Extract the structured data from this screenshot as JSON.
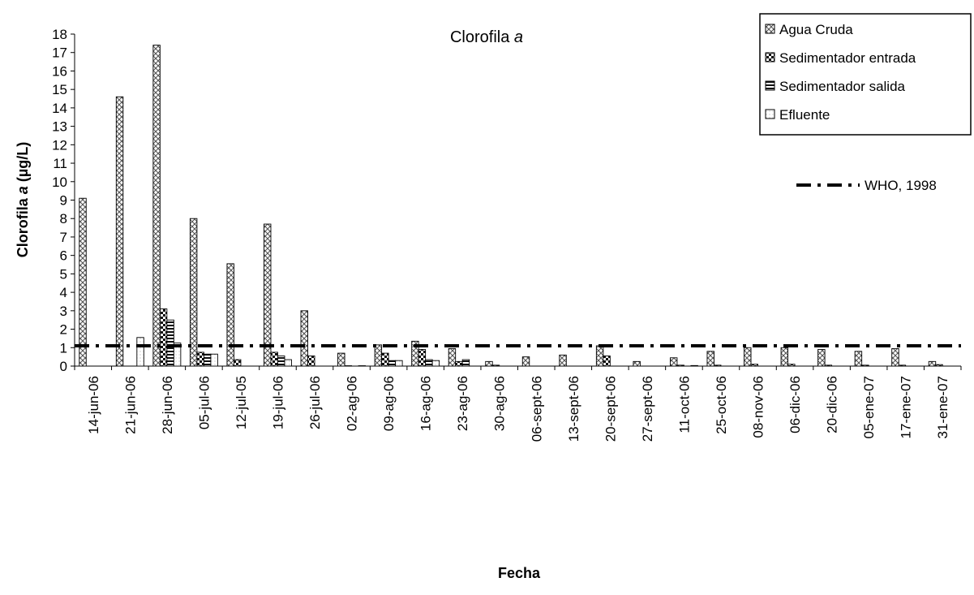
{
  "chart_data": {
    "type": "bar",
    "title": "Clorofila",
    "title_italic": "a",
    "xlabel": "Fecha",
    "ylabel": "Clorofila",
    "ylabel_italic": "a",
    "ylabel_unit": "(µg/L)",
    "ylim": [
      0,
      18
    ],
    "yticks": [
      0,
      1,
      2,
      3,
      4,
      5,
      6,
      7,
      8,
      9,
      10,
      11,
      12,
      13,
      14,
      15,
      16,
      17,
      18
    ],
    "grid": false,
    "legend_position": "top-right",
    "categories": [
      "14-jun-06",
      "21-jun-06",
      "28-jun-06",
      "05-jul-06",
      "12-jul-05",
      "19-jul-06",
      "26-jul-06",
      "02-ag-06",
      "09-ag-06",
      "16-ag-06",
      "23-ag-06",
      "30-ag-06",
      "06-sept-06",
      "13-sept-06",
      "20-sept-06",
      "27-sept-06",
      "11-oct-06",
      "25-oct-06",
      "08-nov-06",
      "06-dic-06",
      "20-dic-06",
      "05-ene-07",
      "17-ene-07",
      "31-ene-07"
    ],
    "series": [
      {
        "name": "Agua Cruda",
        "pattern": "cross",
        "values": [
          9.1,
          14.6,
          17.4,
          8.0,
          5.55,
          7.7,
          3.0,
          0.7,
          1.15,
          1.35,
          0.95,
          0.25,
          0.5,
          0.6,
          1.1,
          0.25,
          0.45,
          0.8,
          1.0,
          1.0,
          0.9,
          0.8,
          0.95,
          0.25
        ]
      },
      {
        "name": "Sedimentador entrada",
        "pattern": "check",
        "values": [
          0,
          0,
          3.1,
          0.75,
          0.35,
          0.75,
          0.55,
          0.02,
          0.7,
          0.9,
          0.25,
          0.05,
          0,
          0,
          0.55,
          0,
          0.05,
          0.05,
          0.1,
          0.1,
          0.05,
          0.05,
          0.05,
          0.08
        ]
      },
      {
        "name": "Sedimentador salida",
        "pattern": "hstripe",
        "values": [
          0,
          0,
          2.5,
          0.65,
          0,
          0.55,
          0,
          0,
          0.3,
          0.35,
          0.35,
          0,
          0,
          0,
          0,
          0,
          0,
          0,
          0,
          0,
          0,
          0,
          0,
          0
        ]
      },
      {
        "name": "Efluente",
        "pattern": "dot",
        "values": [
          0,
          1.55,
          1.25,
          0.65,
          0,
          0.35,
          0,
          0.02,
          0.3,
          0.3,
          0,
          0,
          0,
          0,
          0,
          0,
          0.03,
          0,
          0,
          0,
          0,
          0,
          0,
          0
        ]
      }
    ],
    "reference_line": {
      "label": "WHO, 1998",
      "value": 1.1,
      "style": "dash-dot",
      "color": "#000000"
    }
  }
}
